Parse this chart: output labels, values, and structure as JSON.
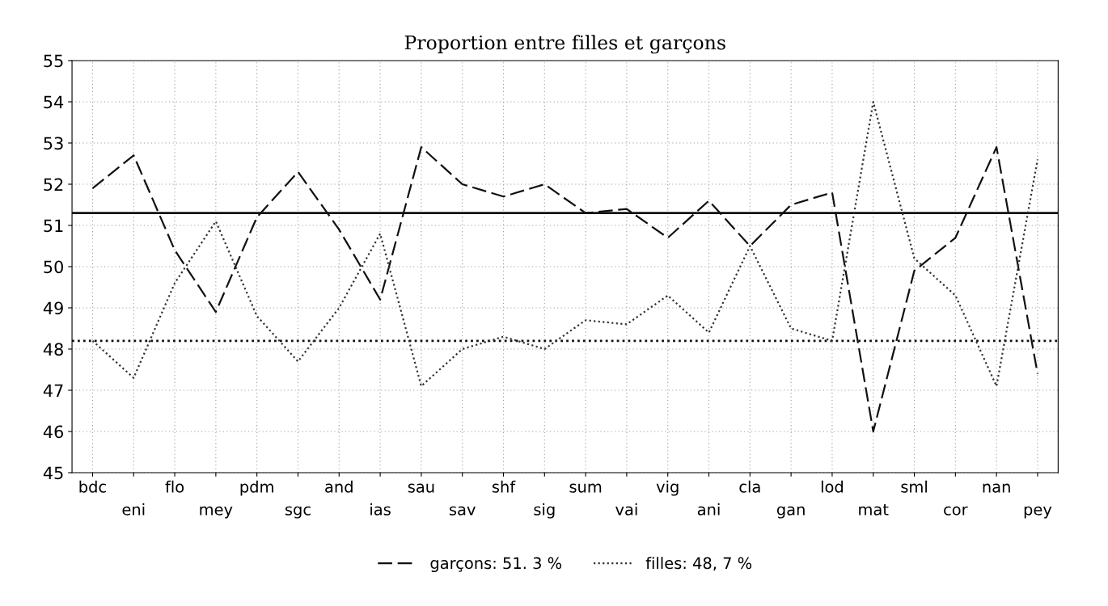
{
  "chart_data": {
    "type": "line",
    "title": "Proportion entre filles et garçons",
    "categories": [
      "bdc",
      "eni",
      "flo",
      "mey",
      "pdm",
      "sgc",
      "and",
      "ias",
      "sau",
      "sav",
      "shf",
      "sig",
      "sum",
      "vai",
      "vig",
      "ani",
      "cla",
      "gan",
      "lod",
      "mat",
      "sml",
      "cor",
      "nan",
      "pey"
    ],
    "series": [
      {
        "name": "garçons: 51. 3 %",
        "color": "#111111",
        "line_style": "dashed",
        "values": [
          51.9,
          52.7,
          50.4,
          48.9,
          51.2,
          52.3,
          50.9,
          49.2,
          52.9,
          52.0,
          51.7,
          52.0,
          51.3,
          51.4,
          50.7,
          51.6,
          50.5,
          51.5,
          51.8,
          46.0,
          49.9,
          50.7,
          52.9,
          47.4
        ]
      },
      {
        "name": "filles: 48, 7 %",
        "color": "#333333",
        "line_style": "dotted",
        "values": [
          48.2,
          47.3,
          49.6,
          51.1,
          48.8,
          47.7,
          49.0,
          50.8,
          47.1,
          48.0,
          48.3,
          48.0,
          48.7,
          48.6,
          49.3,
          48.4,
          50.5,
          48.5,
          48.2,
          54.0,
          50.2,
          49.3,
          47.1,
          52.6
        ]
      }
    ],
    "ref_lines": [
      {
        "axis": "y",
        "value": 51.3,
        "label": null,
        "color": "#111111",
        "line_style": "solid"
      },
      {
        "axis": "y",
        "value": 48.2,
        "label": null,
        "color": "#111111",
        "line_style": "dotted"
      }
    ],
    "ylim": [
      45,
      55
    ],
    "yticks": [
      45,
      46,
      47,
      48,
      49,
      50,
      51,
      52,
      53,
      54,
      55
    ],
    "grid": true,
    "legend": "bottom",
    "marker": "none"
  }
}
